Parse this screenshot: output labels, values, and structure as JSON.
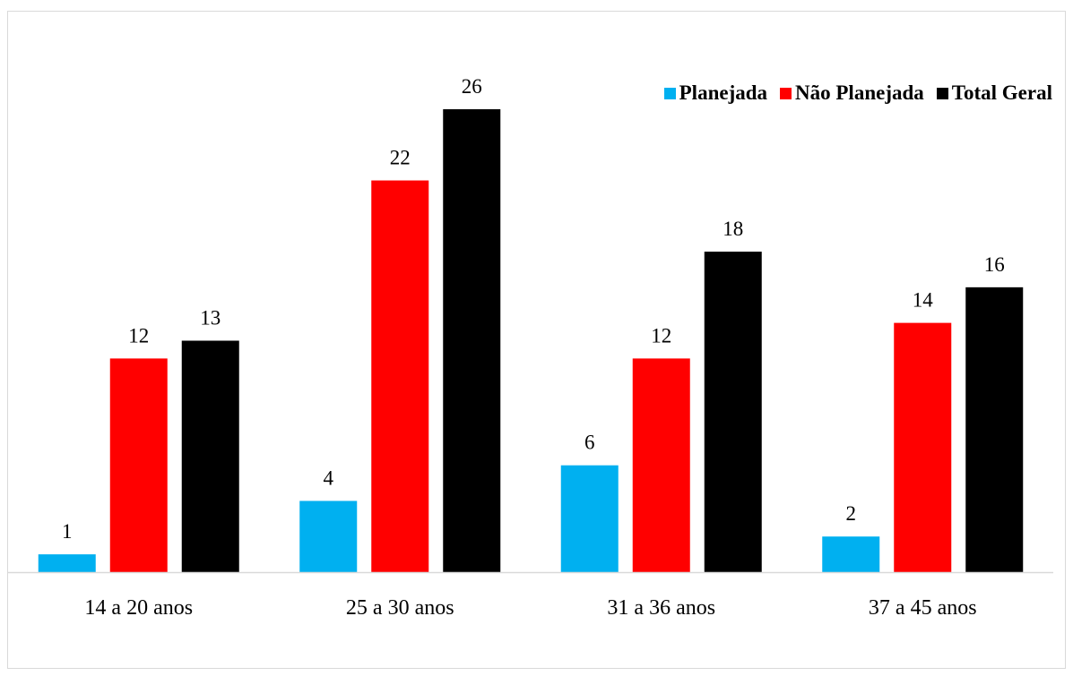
{
  "chart_data": {
    "type": "bar",
    "categories": [
      "14 a 20 anos",
      "25 a 30 anos",
      "31 a 36 anos",
      "37 a 45 anos"
    ],
    "series": [
      {
        "name": "Planejada",
        "values": [
          1,
          4,
          6,
          2
        ],
        "color": "#00b0f0"
      },
      {
        "name": "Não Planejada",
        "values": [
          12,
          22,
          12,
          14
        ],
        "color": "#ff0000"
      },
      {
        "name": "Total Geral",
        "values": [
          13,
          26,
          18,
          16
        ],
        "color": "#000000"
      }
    ],
    "title": "",
    "xlabel": "",
    "ylabel": "",
    "ylim": [
      0,
      26
    ],
    "grid": false,
    "legend": "top-right",
    "data_labels": true
  }
}
